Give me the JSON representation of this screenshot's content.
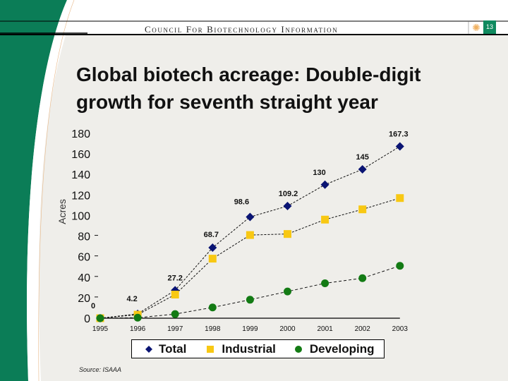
{
  "header": {
    "org_name": "Council For Biotechnology Information",
    "logo_icon": "sun-logo-icon",
    "page_number": "13"
  },
  "slide": {
    "title": "Global biotech acreage: Double-digit growth for seventh straight year",
    "source": "Source: ISAAA"
  },
  "colors": {
    "brand_green": "#0b7d57",
    "total": "#0a1473",
    "industrial": "#f8c813",
    "developing": "#137b14"
  },
  "chart_data": {
    "type": "line",
    "title": "Global biotech acreage: Double-digit growth for seventh straight year",
    "xlabel": "",
    "ylabel": "Acres",
    "ylim": [
      0,
      180
    ],
    "yticks": [
      "0",
      "20",
      "40",
      "60",
      "80",
      "100",
      "120",
      "140",
      "160",
      "180"
    ],
    "ytick_dashes": [
      false,
      true,
      true,
      true,
      true,
      false,
      false,
      false,
      false,
      false
    ],
    "categories": [
      "1995",
      "1996",
      "1997",
      "1998",
      "1999",
      "2000",
      "2001",
      "2002",
      "2003"
    ],
    "grid": false,
    "legend_position": "bottom",
    "series": [
      {
        "name": "Total",
        "marker": "diamond",
        "values": [
          0,
          4.2,
          27.2,
          68.7,
          98.6,
          109.2,
          130,
          145,
          167.3
        ],
        "labels": [
          "0",
          "4.2",
          "27.2",
          "68.7",
          "98.6",
          "109.2",
          "130",
          "145",
          "167.3"
        ]
      },
      {
        "name": "Industrial",
        "marker": "square",
        "values": [
          0,
          3.4,
          23,
          58,
          81,
          82,
          96,
          106,
          117
        ]
      },
      {
        "name": "Developing",
        "marker": "circle",
        "values": [
          0,
          0.5,
          4,
          10.5,
          18,
          26,
          34,
          39,
          51
        ]
      }
    ]
  }
}
